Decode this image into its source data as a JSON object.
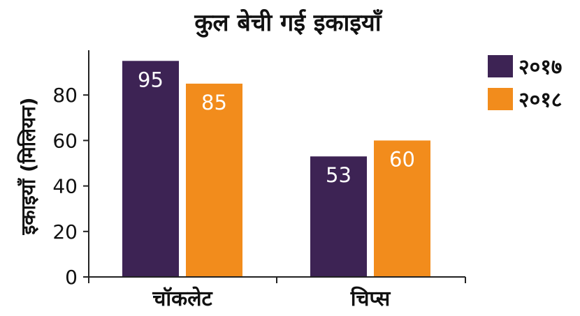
{
  "chart_data": {
    "type": "bar",
    "title": "कुल बेची गई इकाइयाँ",
    "xlabel": "",
    "ylabel": "इकाइयाँ (मिलियन)",
    "categories": [
      "चॉकलेट",
      "चिप्स"
    ],
    "series": [
      {
        "name": "२०१७",
        "values": [
          95,
          53
        ],
        "color": "#3d2354"
      },
      {
        "name": "२०१८",
        "values": [
          85,
          60
        ],
        "color": "#f28c1c"
      }
    ],
    "ylim": [
      0,
      100
    ],
    "yticks": [
      0,
      20,
      40,
      60,
      80
    ],
    "grid": false,
    "legend": "top-right",
    "data_labels": true
  }
}
